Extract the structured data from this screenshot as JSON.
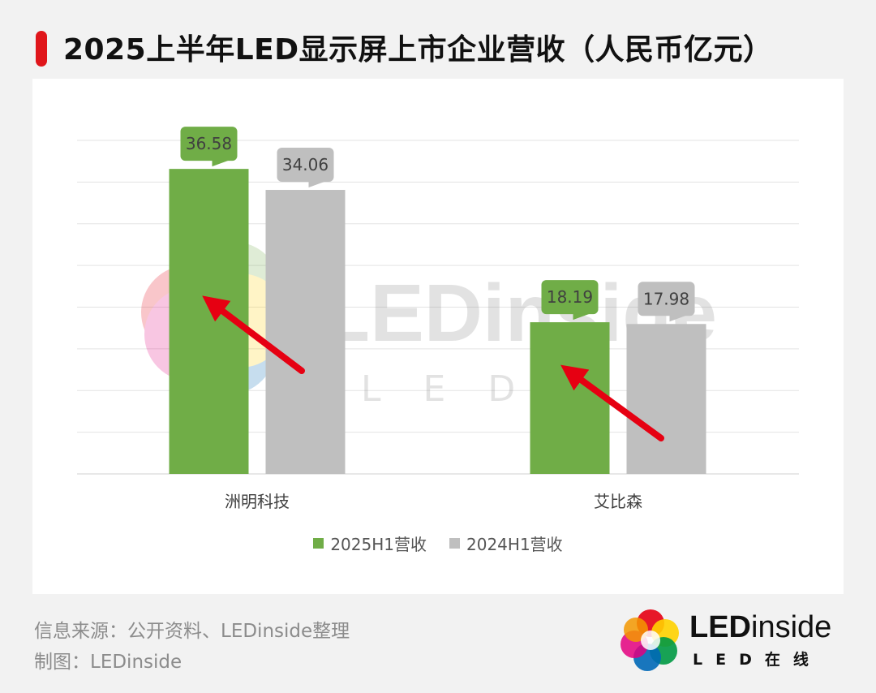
{
  "header": {
    "title": "2025上半年LED显示屏上市企业营收（人民币亿元）",
    "accent_color": "#e0161b"
  },
  "chart_data": {
    "type": "bar",
    "title": "2025上半年LED显示屏上市企业营收（人民币亿元）",
    "categories": [
      "洲明科技",
      "艾比森"
    ],
    "series": [
      {
        "name": "2025H1营收",
        "values": [
          36.58,
          18.19
        ],
        "color": "#70ad47"
      },
      {
        "name": "2024H1营收",
        "values": [
          34.06,
          17.98
        ],
        "color": "#bfbfbf"
      }
    ],
    "value_labels": [
      [
        "36.58",
        "18.19"
      ],
      [
        "34.06",
        "17.98"
      ]
    ],
    "ylim": [
      0,
      40
    ],
    "grid": true,
    "legend": "bottom",
    "annotations": "red arrows pointing up-left at each 2025H1 bar"
  },
  "watermark": {
    "word": "LEDinside",
    "sub": "LED在线"
  },
  "footer": {
    "source": "信息来源：公开资料、LEDinside整理",
    "credit": "制图：LEDinside"
  },
  "logo": {
    "word_bold": "LED",
    "word_light": "inside",
    "sub": "LED在线"
  }
}
